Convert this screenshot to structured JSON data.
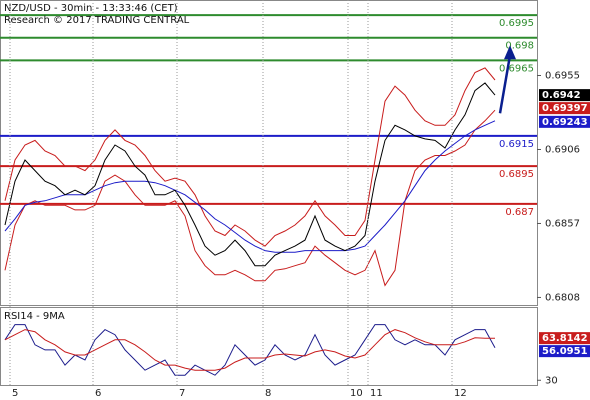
{
  "chart_data": [
    {
      "type": "line",
      "title": "NZD/USD - 30min - 13:33:46 (CET)",
      "subtitle": "Research © 2017 TRADING CENTRAL",
      "xlim": [
        -0.5,
        53.2
      ],
      "ylim": [
        0.6803,
        0.7005
      ],
      "yticks": [
        0.6955,
        0.6906,
        0.6857,
        0.6808
      ],
      "levels": [
        0.6995,
        0.698,
        0.6965,
        0.6915,
        0.6895,
        0.687
      ],
      "level_colors": [
        "#2e8b2e",
        "#2e8b2e",
        "#2e8b2e",
        "#1c1cc8",
        "#c81c1c",
        "#c81c1c"
      ],
      "price_labels": [
        0.6942,
        0.69397,
        0.69243
      ],
      "price_label_colors": [
        "#000000",
        "#c81c1c",
        "#1c1cc8"
      ],
      "series": [
        {
          "color": "#c81c1c",
          "values": [
            0.6872,
            0.6899,
            0.6909,
            0.6912,
            0.6905,
            0.6902,
            0.6895,
            0.6895,
            0.6892,
            0.6899,
            0.6912,
            0.6919,
            0.6912,
            0.6909,
            0.6902,
            0.6892,
            0.6885,
            0.6887,
            0.6885,
            0.6876,
            0.6862,
            0.6852,
            0.6849,
            0.6856,
            0.6852,
            0.6846,
            0.6842,
            0.6849,
            0.6852,
            0.6856,
            0.6862,
            0.6872,
            0.6862,
            0.6856,
            0.6849,
            0.6849,
            0.6859,
            0.6899,
            0.6938,
            0.6948,
            0.6942,
            0.6932,
            0.6925,
            0.6922,
            0.6922,
            0.6929,
            0.6945,
            0.6957,
            0.696,
            0.6952
          ]
        },
        {
          "color": "#c81c1c",
          "values": [
            0.6826,
            0.6856,
            0.6869,
            0.6872,
            0.6869,
            0.6869,
            0.6869,
            0.6866,
            0.6866,
            0.6869,
            0.6885,
            0.6889,
            0.6885,
            0.6876,
            0.6869,
            0.6869,
            0.6869,
            0.6872,
            0.6862,
            0.6839,
            0.6829,
            0.6823,
            0.6823,
            0.6826,
            0.6823,
            0.6819,
            0.6819,
            0.6826,
            0.6827,
            0.6829,
            0.6831,
            0.6842,
            0.6836,
            0.6831,
            0.6826,
            0.6823,
            0.6826,
            0.6839,
            0.6816,
            0.6826,
            0.6872,
            0.6892,
            0.6899,
            0.6902,
            0.6902,
            0.6905,
            0.6909,
            0.6919,
            0.6925,
            0.6932
          ]
        },
        {
          "color": "#1c1cc8",
          "values": [
            0.6852,
            0.686,
            0.6869,
            0.6871,
            0.6872,
            0.6874,
            0.6876,
            0.6876,
            0.6876,
            0.6879,
            0.6882,
            0.6884,
            0.6885,
            0.6885,
            0.6885,
            0.6884,
            0.6882,
            0.6879,
            0.6876,
            0.6871,
            0.6866,
            0.686,
            0.6856,
            0.6851,
            0.6846,
            0.6842,
            0.6839,
            0.6838,
            0.6838,
            0.6838,
            0.6839,
            0.6839,
            0.6839,
            0.6839,
            0.6839,
            0.684,
            0.6842,
            0.6849,
            0.6856,
            0.6864,
            0.6872,
            0.6882,
            0.6892,
            0.6899,
            0.6905,
            0.691,
            0.6915,
            0.6919,
            0.6922,
            0.6925
          ]
        },
        {
          "color": "#000000",
          "values": [
            0.6856,
            0.6885,
            0.6899,
            0.6892,
            0.6885,
            0.6882,
            0.6876,
            0.6879,
            0.6876,
            0.6882,
            0.6899,
            0.6909,
            0.6905,
            0.6895,
            0.6889,
            0.6876,
            0.6876,
            0.6879,
            0.6869,
            0.6856,
            0.6842,
            0.6836,
            0.6839,
            0.6846,
            0.6839,
            0.6829,
            0.6829,
            0.6836,
            0.6839,
            0.6842,
            0.6846,
            0.6862,
            0.6846,
            0.6842,
            0.6839,
            0.6842,
            0.6849,
            0.6885,
            0.6912,
            0.6922,
            0.6919,
            0.6915,
            0.6913,
            0.6912,
            0.6907,
            0.6919,
            0.6929,
            0.6945,
            0.695,
            0.6942
          ]
        }
      ],
      "forecast": {
        "color": "#0a1f8f",
        "x": [
          49.5,
          50.5
        ],
        "values": [
          0.693,
          0.6975
        ]
      }
    },
    {
      "type": "line",
      "title": "RSI14 - 9MA",
      "xlim": [
        -0.5,
        53.2
      ],
      "ylim": [
        27,
        88
      ],
      "yticks": [
        30
      ],
      "xticks": [
        {
          "value": 0.5,
          "label": "5"
        },
        {
          "value": 8.8,
          "label": "6"
        },
        {
          "value": 17.2,
          "label": "7"
        },
        {
          "value": 25.8,
          "label": "8"
        },
        {
          "value": 34.3,
          "label": "10"
        },
        {
          "value": 36.3,
          "label": "11"
        },
        {
          "value": 44.7,
          "label": "12"
        }
      ],
      "price_labels": [
        63.8142,
        56.0951
      ],
      "price_label_colors": [
        "#c81c1c",
        "#1c1cc8"
      ],
      "series": [
        {
          "color": "#1c1c8c",
          "values": [
            62.5,
            74.7,
            74.7,
            58.5,
            54.4,
            54.4,
            42.2,
            50.3,
            46.3,
            62.5,
            70.7,
            66.6,
            54.4,
            46.3,
            38.1,
            42.2,
            46.3,
            34.1,
            34.1,
            42.2,
            38.1,
            34.1,
            42.2,
            58.5,
            50.3,
            42.2,
            46.3,
            58.5,
            50.3,
            46.3,
            50.3,
            66.6,
            50.3,
            42.2,
            46.3,
            50.3,
            62.5,
            74.7,
            74.7,
            62.5,
            58.5,
            62.5,
            58.5,
            58.5,
            50.3,
            62.5,
            66.6,
            70.7,
            70.7,
            56.1
          ]
        },
        {
          "color": "#c81c1c",
          "values": [
            62.5,
            66.6,
            70.7,
            69.0,
            62.5,
            58.5,
            52.8,
            50.3,
            50.3,
            54.4,
            58.5,
            62.5,
            62.5,
            58.5,
            52.8,
            46.3,
            42.2,
            42.2,
            39.8,
            38.1,
            38.1,
            38.1,
            39.8,
            44.6,
            47.9,
            47.9,
            47.9,
            50.3,
            51.1,
            50.3,
            49.5,
            52.8,
            54.4,
            52.8,
            49.5,
            47.9,
            50.3,
            58.5,
            66.6,
            70.7,
            68.2,
            64.1,
            60.9,
            58.5,
            58.5,
            58.5,
            60.9,
            64.1,
            63.8,
            63.8
          ]
        }
      ]
    }
  ]
}
